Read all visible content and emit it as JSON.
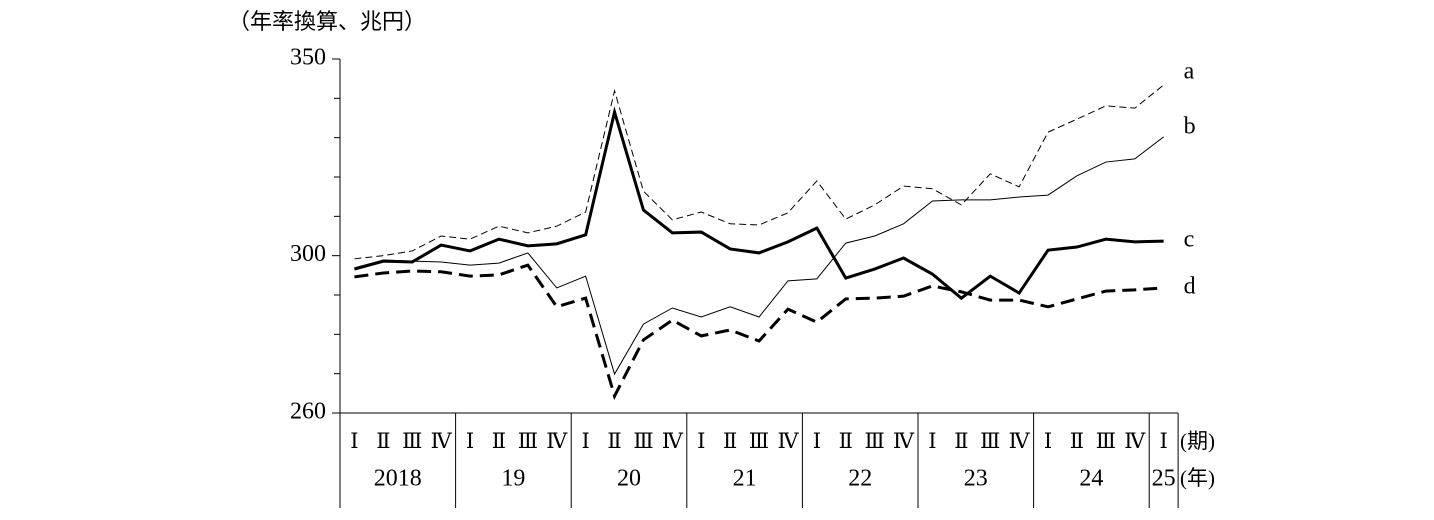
{
  "chart_data": {
    "type": "line",
    "y_axis_label": "（年率換算、兆円）",
    "x_axis_label": "(期)",
    "group_axis_label": "(年)",
    "categories": [
      "Ⅰ",
      "Ⅱ",
      "Ⅲ",
      "Ⅳ",
      "Ⅰ",
      "Ⅱ",
      "Ⅲ",
      "Ⅳ",
      "Ⅰ",
      "Ⅱ",
      "Ⅲ",
      "Ⅳ",
      "Ⅰ",
      "Ⅱ",
      "Ⅲ",
      "Ⅳ",
      "Ⅰ",
      "Ⅱ",
      "Ⅲ",
      "Ⅳ",
      "Ⅰ",
      "Ⅱ",
      "Ⅲ",
      "Ⅳ",
      "Ⅰ",
      "Ⅱ",
      "Ⅲ",
      "Ⅳ",
      "Ⅰ"
    ],
    "groups": [
      "2018",
      null,
      null,
      null,
      "19",
      null,
      null,
      null,
      "20",
      null,
      null,
      null,
      "21",
      null,
      null,
      null,
      "22",
      null,
      null,
      null,
      "23",
      null,
      null,
      null,
      "24",
      null,
      null,
      null,
      "25"
    ],
    "ylim": [
      260,
      350
    ],
    "yticks": [
      260,
      300,
      350
    ],
    "minor_yticks": [
      270,
      280,
      290,
      310,
      320,
      330,
      340
    ],
    "series": [
      {
        "name": "a",
        "color": "#000000",
        "line_width": 1,
        "dash": "dashed",
        "values": [
          299.2,
          300,
          301.2,
          305,
          304.2,
          307.5,
          305.8,
          307.5,
          311.1,
          341.9,
          316.4,
          309.1,
          311.1,
          308.1,
          307.8,
          310.9,
          319,
          309.3,
          312.9,
          317.7,
          317,
          312.9,
          320.8,
          317.5,
          331.4,
          334.7,
          338.1,
          337.5,
          343.4
        ]
      },
      {
        "name": "b",
        "color": "#000000",
        "line_width": 1,
        "dash": "solid",
        "values": [
          296.9,
          298.9,
          298.6,
          298.4,
          297.6,
          298.1,
          300.7,
          291.8,
          294.8,
          269.9,
          282.6,
          286.7,
          284.4,
          287,
          284.4,
          293.6,
          294.1,
          303.2,
          305,
          308.1,
          313.9,
          314.2,
          314.2,
          314.9,
          315.4,
          320.3,
          323.8,
          324.6,
          330.2
        ]
      },
      {
        "name": "c",
        "color": "#000000",
        "line_width": 3,
        "dash": "solid",
        "values": [
          296.6,
          298.6,
          298.4,
          302.7,
          301.2,
          304.2,
          302.5,
          303,
          305.3,
          336.5,
          311.6,
          305.8,
          306,
          301.7,
          300.7,
          303.5,
          307,
          294.3,
          296.6,
          299.4,
          295.3,
          289.2,
          294.8,
          290.5,
          301.4,
          302.2,
          304.2,
          303.5,
          303.7
        ]
      },
      {
        "name": "d",
        "color": "#000000",
        "line_width": 3,
        "dash": "dashed",
        "values": [
          294.6,
          295.6,
          296.1,
          295.9,
          294.8,
          295.1,
          297.6,
          287,
          289.2,
          264.3,
          278.6,
          283.6,
          279.6,
          281.1,
          278.3,
          286.4,
          283.1,
          289,
          289.2,
          289.7,
          292.3,
          290.8,
          288.7,
          288.7,
          287,
          289,
          291,
          291.3,
          291.8
        ]
      }
    ]
  }
}
